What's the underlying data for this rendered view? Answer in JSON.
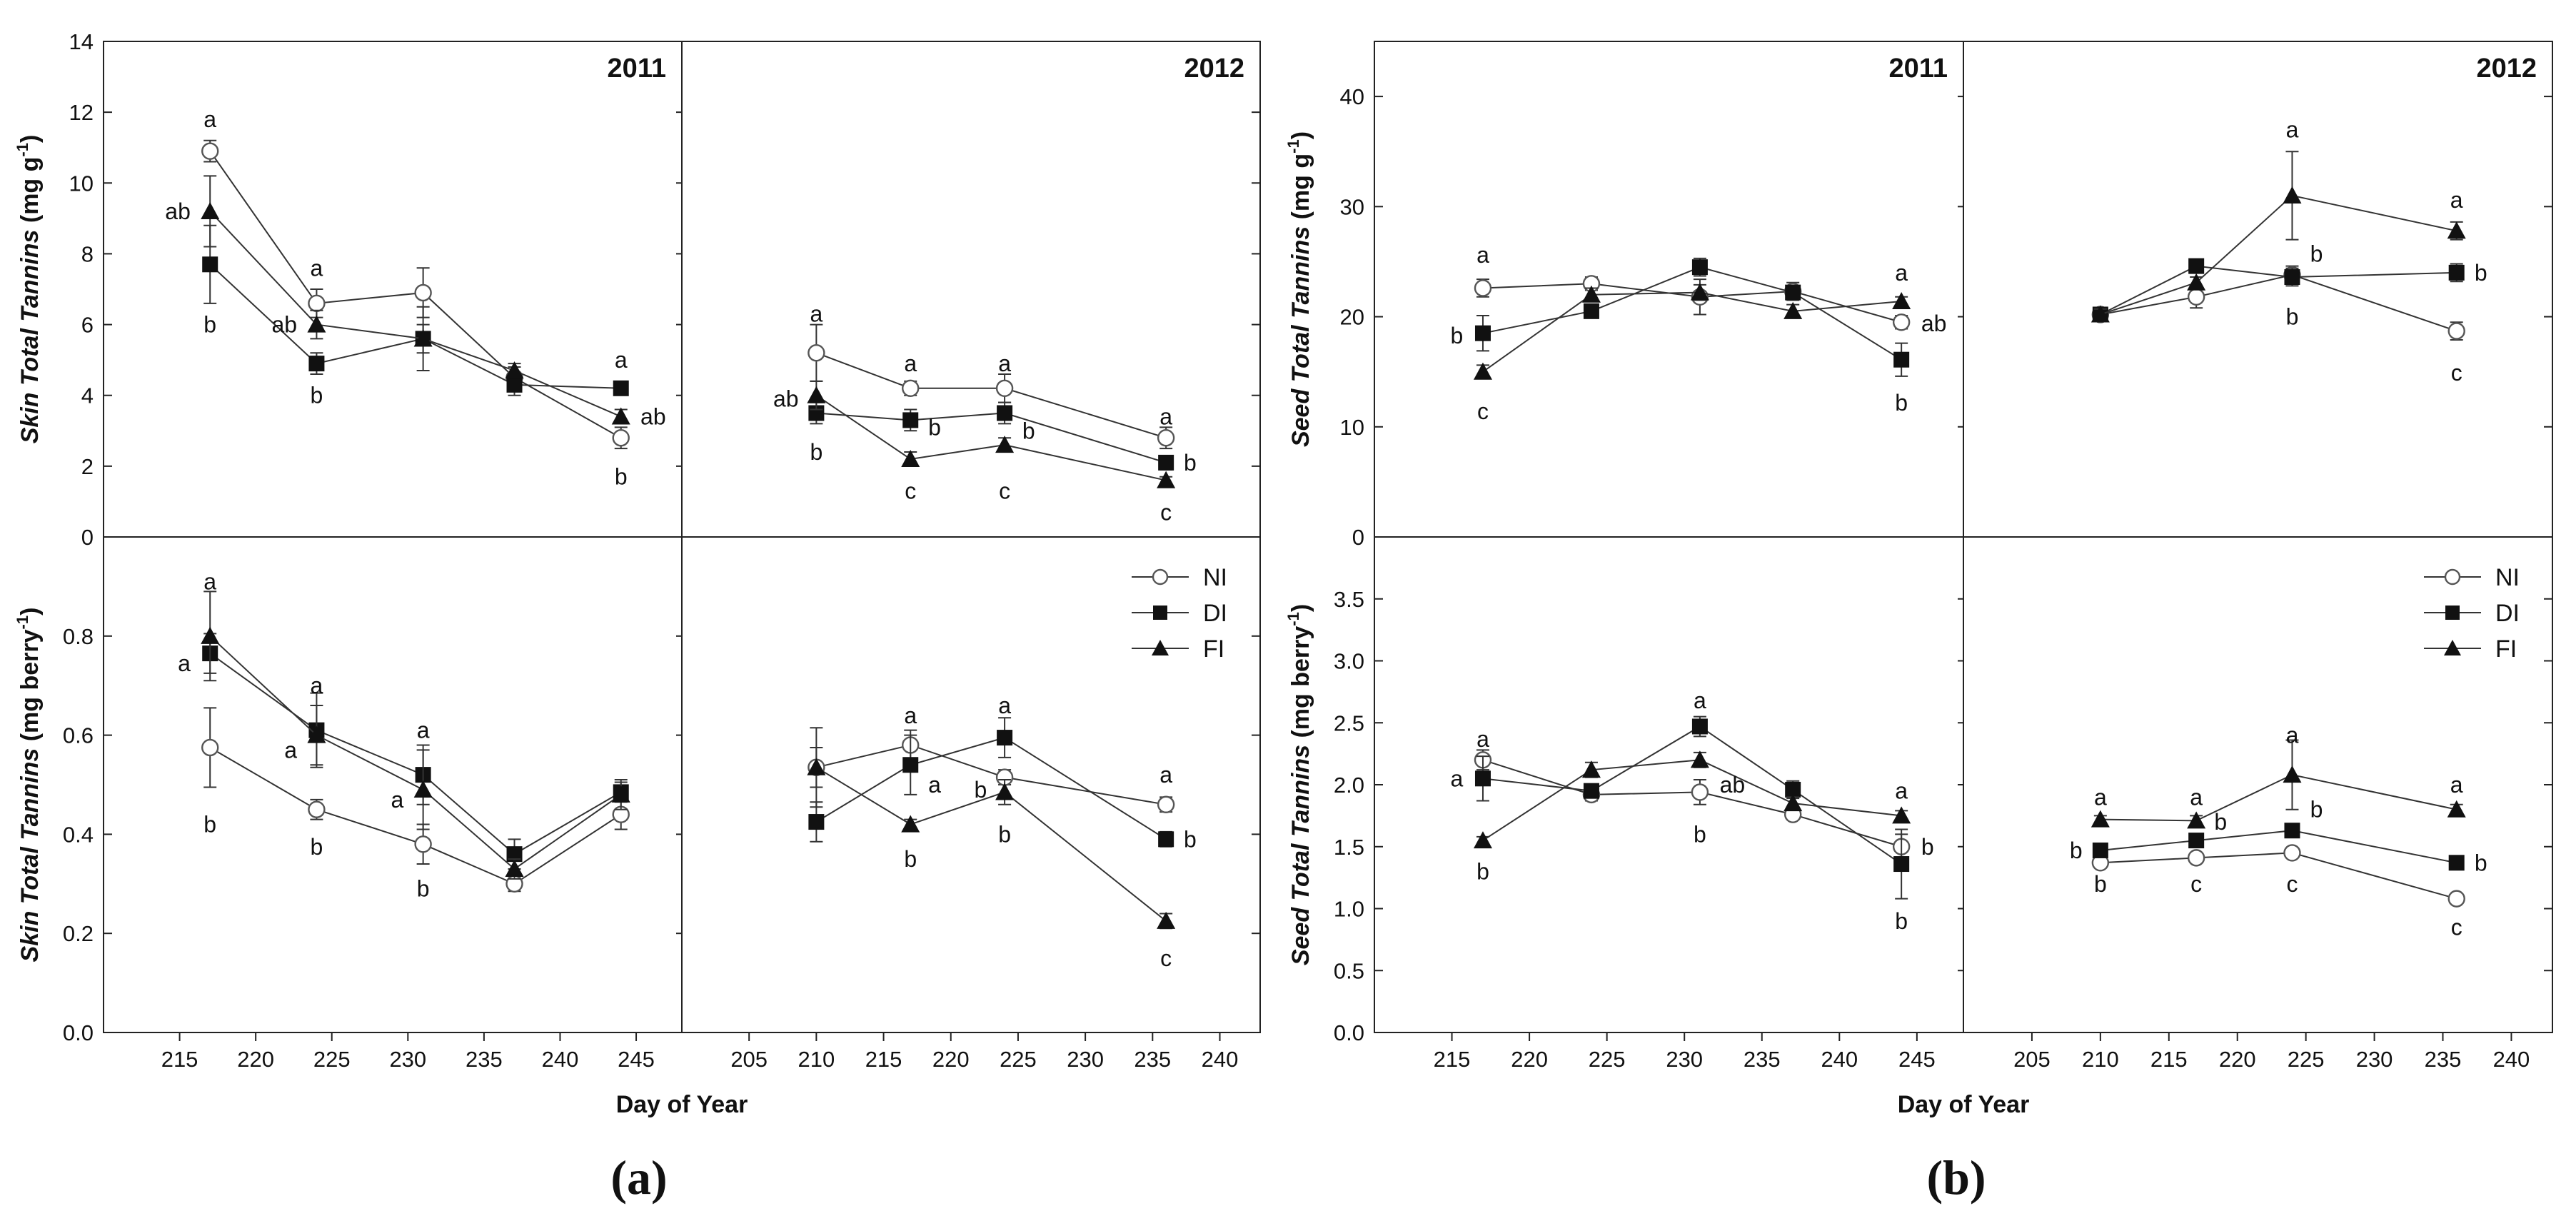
{
  "series": {
    "NI": {
      "marker": "open-circle",
      "color": "#555555"
    },
    "DI": {
      "marker": "filled-square",
      "color": "#111111"
    },
    "FI": {
      "marker": "filled-triangle",
      "color": "#111111"
    }
  },
  "legend": {
    "entries": [
      "NI",
      "DI",
      "FI"
    ]
  },
  "chart_data": [
    {
      "id": "a-top-2011",
      "panel": "a",
      "type": "line",
      "title": "2011",
      "ylabel": "Skin Total Tannins (mg g⁻¹)",
      "ylim": [
        0,
        14
      ],
      "yticks": [
        0,
        2,
        4,
        6,
        8,
        10,
        12,
        14
      ],
      "xlim": [
        210,
        248
      ],
      "xticks": [
        215,
        220,
        225,
        230,
        235,
        240,
        245
      ],
      "x": [
        217,
        224,
        231,
        237,
        244
      ],
      "series": [
        {
          "name": "NI",
          "values": [
            10.9,
            6.6,
            6.9,
            4.5,
            2.8
          ],
          "err": [
            0.3,
            0.4,
            0.7,
            0.3,
            0.3
          ]
        },
        {
          "name": "DI",
          "values": [
            7.7,
            4.9,
            5.6,
            4.3,
            4.2
          ],
          "err": [
            1.1,
            0.3,
            0.9,
            0.3,
            0.1
          ]
        },
        {
          "name": "FI",
          "values": [
            9.2,
            6.0,
            5.6,
            4.7,
            3.4
          ],
          "err": [
            1.0,
            0.4,
            0.4,
            0.2,
            0.2
          ]
        }
      ],
      "letters": [
        {
          "x": 217,
          "y": 11.8,
          "text": "a"
        },
        {
          "x": 216,
          "y": 9.2,
          "text": "ab",
          "side": "left"
        },
        {
          "x": 217,
          "y": 6.0,
          "text": "b"
        },
        {
          "x": 224,
          "y": 7.6,
          "text": "a"
        },
        {
          "x": 223,
          "y": 6.0,
          "text": "ab",
          "side": "left"
        },
        {
          "x": 224,
          "y": 4.0,
          "text": "b"
        },
        {
          "x": 244,
          "y": 5.0,
          "text": "a"
        },
        {
          "x": 245,
          "y": 3.4,
          "text": "ab",
          "side": "right"
        },
        {
          "x": 244,
          "y": 1.7,
          "text": "b"
        }
      ]
    },
    {
      "id": "a-top-2012",
      "panel": "a",
      "type": "line",
      "title": "2012",
      "ylabel": "",
      "ylim": [
        0,
        14
      ],
      "yticks": [
        0,
        2,
        4,
        6,
        8,
        10,
        12,
        14
      ],
      "xlim": [
        200,
        243
      ],
      "xticks": [
        205,
        210,
        215,
        220,
        225,
        230,
        235,
        240
      ],
      "x": [
        210,
        217,
        224,
        236
      ],
      "series": [
        {
          "name": "NI",
          "values": [
            5.2,
            4.2,
            4.2,
            2.8
          ],
          "err": [
            0.8,
            0.2,
            0.4,
            0.3
          ]
        },
        {
          "name": "DI",
          "values": [
            3.5,
            3.3,
            3.5,
            2.1
          ],
          "err": [
            0.3,
            0.3,
            0.3,
            0.2
          ]
        },
        {
          "name": "FI",
          "values": [
            4.0,
            2.2,
            2.6,
            1.6
          ],
          "err": [
            0.4,
            0.2,
            0.2,
            0.1
          ]
        }
      ],
      "letters": [
        {
          "x": 210,
          "y": 6.3,
          "text": "a"
        },
        {
          "x": 209,
          "y": 3.9,
          "text": "ab",
          "side": "left"
        },
        {
          "x": 210,
          "y": 2.4,
          "text": "b"
        },
        {
          "x": 217,
          "y": 4.9,
          "text": "a"
        },
        {
          "x": 218,
          "y": 3.1,
          "text": "b",
          "side": "right"
        },
        {
          "x": 217,
          "y": 1.3,
          "text": "c"
        },
        {
          "x": 224,
          "y": 4.9,
          "text": "a"
        },
        {
          "x": 225,
          "y": 3.0,
          "text": "b",
          "side": "right"
        },
        {
          "x": 224,
          "y": 1.3,
          "text": "c"
        },
        {
          "x": 236,
          "y": 3.4,
          "text": "a"
        },
        {
          "x": 237,
          "y": 2.1,
          "text": "b",
          "side": "right"
        },
        {
          "x": 236,
          "y": 0.7,
          "text": "c"
        }
      ]
    },
    {
      "id": "a-bottom-2011",
      "panel": "a",
      "type": "line",
      "title": "",
      "ylabel": "Skin Total Tannins (mg berry⁻¹)",
      "xlabel": "Day of Year",
      "ylim": [
        0,
        1.0
      ],
      "yticks": [
        0.0,
        0.2,
        0.4,
        0.6,
        0.8
      ],
      "ytick_labels": [
        "0.0",
        "0.2",
        "0.4",
        "0.6",
        "0.8"
      ],
      "xlim": [
        210,
        248
      ],
      "xticks": [
        215,
        220,
        225,
        230,
        235,
        240,
        245
      ],
      "x": [
        217,
        224,
        231,
        237,
        244
      ],
      "series": [
        {
          "name": "NI",
          "values": [
            0.575,
            0.45,
            0.38,
            0.3,
            0.44
          ],
          "err": [
            0.08,
            0.02,
            0.04,
            0.015,
            0.03
          ]
        },
        {
          "name": "DI",
          "values": [
            0.765,
            0.61,
            0.52,
            0.36,
            0.485
          ],
          "err": [
            0.04,
            0.075,
            0.06,
            0.03,
            0.02
          ]
        },
        {
          "name": "FI",
          "values": [
            0.8,
            0.6,
            0.49,
            0.33,
            0.48
          ],
          "err": [
            0.09,
            0.06,
            0.08,
            0.02,
            0.03
          ]
        }
      ],
      "letters": [
        {
          "x": 217,
          "y": 0.91,
          "text": "a"
        },
        {
          "x": 216,
          "y": 0.745,
          "text": "a",
          "side": "left"
        },
        {
          "x": 217,
          "y": 0.42,
          "text": "b"
        },
        {
          "x": 224,
          "y": 0.7,
          "text": "a"
        },
        {
          "x": 223,
          "y": 0.57,
          "text": "a",
          "side": "left"
        },
        {
          "x": 224,
          "y": 0.375,
          "text": "b"
        },
        {
          "x": 231,
          "y": 0.61,
          "text": "a"
        },
        {
          "x": 230,
          "y": 0.47,
          "text": "a",
          "side": "left"
        },
        {
          "x": 231,
          "y": 0.29,
          "text": "b"
        }
      ]
    },
    {
      "id": "a-bottom-2012",
      "panel": "a",
      "type": "line",
      "title": "",
      "ylabel": "",
      "xlabel": "",
      "ylim": [
        0,
        1.0
      ],
      "yticks": [
        0.0,
        0.2,
        0.4,
        0.6,
        0.8
      ],
      "xlim": [
        200,
        243
      ],
      "xticks": [
        205,
        210,
        215,
        220,
        225,
        230,
        235,
        240
      ],
      "x": [
        210,
        217,
        224,
        236
      ],
      "series": [
        {
          "name": "NI",
          "values": [
            0.535,
            0.58,
            0.515,
            0.46
          ],
          "err": [
            0.08,
            0.03,
            0.015,
            0.015
          ]
        },
        {
          "name": "DI",
          "values": [
            0.425,
            0.54,
            0.595,
            0.39
          ],
          "err": [
            0.04,
            0.06,
            0.04,
            0.015
          ]
        },
        {
          "name": "FI",
          "values": [
            0.535,
            0.42,
            0.485,
            0.225
          ],
          "err": [
            0.04,
            0.01,
            0.025,
            0.015
          ]
        }
      ],
      "letters": [
        {
          "x": 217,
          "y": 0.64,
          "text": "a"
        },
        {
          "x": 218,
          "y": 0.5,
          "text": "a",
          "side": "right"
        },
        {
          "x": 217,
          "y": 0.35,
          "text": "b"
        },
        {
          "x": 224,
          "y": 0.66,
          "text": "a"
        },
        {
          "x": 223,
          "y": 0.49,
          "text": "b",
          "side": "left"
        },
        {
          "x": 224,
          "y": 0.4,
          "text": "b"
        },
        {
          "x": 236,
          "y": 0.52,
          "text": "a"
        },
        {
          "x": 237,
          "y": 0.39,
          "text": "b",
          "side": "right"
        },
        {
          "x": 236,
          "y": 0.15,
          "text": "c"
        }
      ]
    },
    {
      "id": "b-top-2011",
      "panel": "b",
      "type": "line",
      "title": "2011",
      "ylabel": "Seed Total Tannins (mg g⁻¹)",
      "ylim": [
        0,
        45
      ],
      "yticks": [
        0,
        10,
        20,
        30,
        40
      ],
      "xlim": [
        210,
        248
      ],
      "xticks": [
        215,
        220,
        225,
        230,
        235,
        240,
        245
      ],
      "x": [
        217,
        224,
        231,
        237,
        244
      ],
      "series": [
        {
          "name": "NI",
          "values": [
            22.6,
            23.0,
            21.8,
            22.3,
            19.5
          ],
          "err": [
            0.8,
            0.6,
            1.6,
            0.8,
            0.6
          ]
        },
        {
          "name": "DI",
          "values": [
            18.5,
            20.5,
            24.5,
            22.2,
            16.1
          ],
          "err": [
            1.6,
            0.6,
            0.8,
            0.6,
            1.5
          ]
        },
        {
          "name": "FI",
          "values": [
            15.0,
            22.0,
            22.2,
            20.5,
            21.4
          ],
          "err": [
            0.6,
            0.6,
            0.7,
            0.6,
            0.4
          ]
        }
      ],
      "letters": [
        {
          "x": 217,
          "y": 25.6,
          "text": "a"
        },
        {
          "x": 216,
          "y": 18.3,
          "text": "b",
          "side": "left"
        },
        {
          "x": 217,
          "y": 11.4,
          "text": "c"
        },
        {
          "x": 244,
          "y": 24.0,
          "text": "a"
        },
        {
          "x": 245,
          "y": 19.4,
          "text": "ab",
          "side": "right"
        },
        {
          "x": 244,
          "y": 12.2,
          "text": "b"
        }
      ]
    },
    {
      "id": "b-top-2012",
      "panel": "b",
      "type": "line",
      "title": "2012",
      "ylabel": "",
      "ylim": [
        0,
        45
      ],
      "yticks": [
        0,
        10,
        20,
        30,
        40
      ],
      "xlim": [
        200,
        243
      ],
      "xticks": [
        205,
        210,
        215,
        220,
        225,
        230,
        235,
        240
      ],
      "x": [
        210,
        217,
        224,
        236
      ],
      "series": [
        {
          "name": "NI",
          "values": [
            20.2,
            21.8,
            23.8,
            18.7
          ],
          "err": [
            0.5,
            1.0,
            0.8,
            0.8
          ]
        },
        {
          "name": "DI",
          "values": [
            20.2,
            24.6,
            23.6,
            24.0
          ],
          "err": [
            0.5,
            0.5,
            0.8,
            0.8
          ]
        },
        {
          "name": "FI",
          "values": [
            20.2,
            23.1,
            31.0,
            27.8
          ],
          "err": [
            0.5,
            0.5,
            4.0,
            0.8
          ]
        }
      ],
      "letters": [
        {
          "x": 224,
          "y": 37.0,
          "text": "a"
        },
        {
          "x": 225,
          "y": 25.7,
          "text": "b",
          "side": "right"
        },
        {
          "x": 224,
          "y": 20.0,
          "text": "b"
        },
        {
          "x": 236,
          "y": 30.6,
          "text": "a"
        },
        {
          "x": 237,
          "y": 24.0,
          "text": "b",
          "side": "right"
        },
        {
          "x": 236,
          "y": 14.9,
          "text": "c"
        }
      ]
    },
    {
      "id": "b-bottom-2011",
      "panel": "b",
      "type": "line",
      "title": "",
      "ylabel": "Seed Total Tannins (mg berry⁻¹)",
      "xlabel": "Day of Year",
      "ylim": [
        0,
        4.0
      ],
      "yticks": [
        0.0,
        0.5,
        1.0,
        1.5,
        2.0,
        2.5,
        3.0,
        3.5
      ],
      "ytick_labels": [
        "0.0",
        "0.5",
        "1.0",
        "1.5",
        "2.0",
        "2.5",
        "3.0",
        "3.5"
      ],
      "xlim": [
        210,
        248
      ],
      "xticks": [
        215,
        220,
        225,
        230,
        235,
        240,
        245
      ],
      "x": [
        217,
        224,
        231,
        237,
        244
      ],
      "series": [
        {
          "name": "NI",
          "values": [
            2.2,
            1.92,
            1.94,
            1.76,
            1.5
          ],
          "err": [
            0.08,
            0.05,
            0.1,
            0.04,
            0.1
          ]
        },
        {
          "name": "DI",
          "values": [
            2.05,
            1.95,
            2.47,
            1.96,
            1.36
          ],
          "err": [
            0.18,
            0.05,
            0.08,
            0.07,
            0.28
          ]
        },
        {
          "name": "FI",
          "values": [
            1.55,
            2.12,
            2.2,
            1.85,
            1.75
          ],
          "err": [
            0.03,
            0.06,
            0.06,
            0.05,
            0.04
          ]
        }
      ],
      "letters": [
        {
          "x": 217,
          "y": 2.37,
          "text": "a"
        },
        {
          "x": 216,
          "y": 2.05,
          "text": "a",
          "side": "left"
        },
        {
          "x": 217,
          "y": 1.3,
          "text": "b"
        },
        {
          "x": 231,
          "y": 2.68,
          "text": "a"
        },
        {
          "x": 232,
          "y": 2.0,
          "text": "ab",
          "side": "right"
        },
        {
          "x": 231,
          "y": 1.6,
          "text": "b"
        },
        {
          "x": 244,
          "y": 1.95,
          "text": "a"
        },
        {
          "x": 245,
          "y": 1.5,
          "text": "b",
          "side": "right"
        },
        {
          "x": 244,
          "y": 0.9,
          "text": "b"
        }
      ]
    },
    {
      "id": "b-bottom-2012",
      "panel": "b",
      "type": "line",
      "title": "",
      "ylabel": "",
      "xlabel": "",
      "ylim": [
        0,
        4.0
      ],
      "yticks": [
        0.0,
        0.5,
        1.0,
        1.5,
        2.0,
        2.5,
        3.0,
        3.5
      ],
      "xlim": [
        200,
        243
      ],
      "xticks": [
        205,
        210,
        215,
        220,
        225,
        230,
        235,
        240
      ],
      "x": [
        210,
        217,
        224,
        236
      ],
      "series": [
        {
          "name": "NI",
          "values": [
            1.37,
            1.41,
            1.45,
            1.08
          ],
          "err": [
            0.03,
            0.03,
            0.03,
            0.03
          ]
        },
        {
          "name": "DI",
          "values": [
            1.47,
            1.55,
            1.63,
            1.37
          ],
          "err": [
            0.03,
            0.03,
            0.03,
            0.03
          ]
        },
        {
          "name": "FI",
          "values": [
            1.72,
            1.71,
            2.08,
            1.8
          ],
          "err": [
            0.03,
            0.04,
            0.28,
            0.04
          ]
        }
      ],
      "letters": [
        {
          "x": 210,
          "y": 1.9,
          "text": "a"
        },
        {
          "x": 209,
          "y": 1.47,
          "text": "b",
          "side": "left"
        },
        {
          "x": 210,
          "y": 1.2,
          "text": "b"
        },
        {
          "x": 217,
          "y": 1.9,
          "text": "a"
        },
        {
          "x": 218,
          "y": 1.7,
          "text": "b",
          "side": "right"
        },
        {
          "x": 217,
          "y": 1.2,
          "text": "c"
        },
        {
          "x": 224,
          "y": 2.4,
          "text": "a"
        },
        {
          "x": 225,
          "y": 1.8,
          "text": "b",
          "side": "right"
        },
        {
          "x": 224,
          "y": 1.2,
          "text": "c"
        },
        {
          "x": 236,
          "y": 2.0,
          "text": "a"
        },
        {
          "x": 237,
          "y": 1.37,
          "text": "b",
          "side": "right"
        },
        {
          "x": 236,
          "y": 0.85,
          "text": "c"
        }
      ]
    }
  ],
  "captions": {
    "a": "(a)",
    "b": "(b)"
  }
}
